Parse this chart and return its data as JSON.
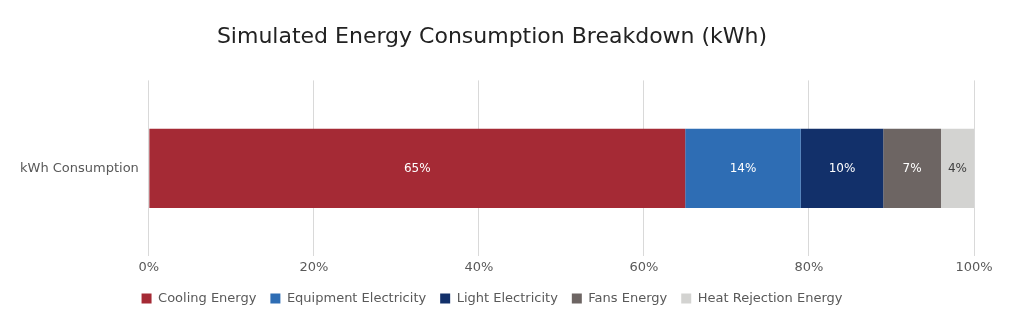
{
  "chart_data": {
    "type": "bar",
    "title": "Simulated Energy Consumption Breakdown (kWh)",
    "orientation": "horizontal",
    "stacked": true,
    "categories": [
      "kWh Consumption"
    ],
    "series": [
      {
        "name": "Cooling Energy",
        "color": "#a52a35",
        "values": [
          65
        ],
        "value_labels": [
          "65%"
        ]
      },
      {
        "name": "Equipment Electricity",
        "color": "#2e6db4",
        "values": [
          14
        ],
        "value_labels": [
          "14%"
        ]
      },
      {
        "name": "Light Electricity",
        "color": "#12306a",
        "values": [
          10
        ],
        "value_labels": [
          "10%"
        ]
      },
      {
        "name": "Fans Energy",
        "color": "#6d6563",
        "values": [
          7
        ],
        "value_labels": [
          "7%"
        ]
      },
      {
        "name": "Heat Rejection Energy",
        "color": "#d3d3d1",
        "values": [
          4
        ],
        "value_labels": [
          "4%"
        ]
      }
    ],
    "xlim": [
      0,
      100
    ],
    "xticks": [
      {
        "value": 0,
        "label": "0%"
      },
      {
        "value": 20,
        "label": "20%"
      },
      {
        "value": 40,
        "label": "40%"
      },
      {
        "value": 60,
        "label": "60%"
      },
      {
        "value": 80,
        "label": "80%"
      },
      {
        "value": 100,
        "label": "100%"
      }
    ],
    "grid": "x",
    "legend": "bottom"
  }
}
